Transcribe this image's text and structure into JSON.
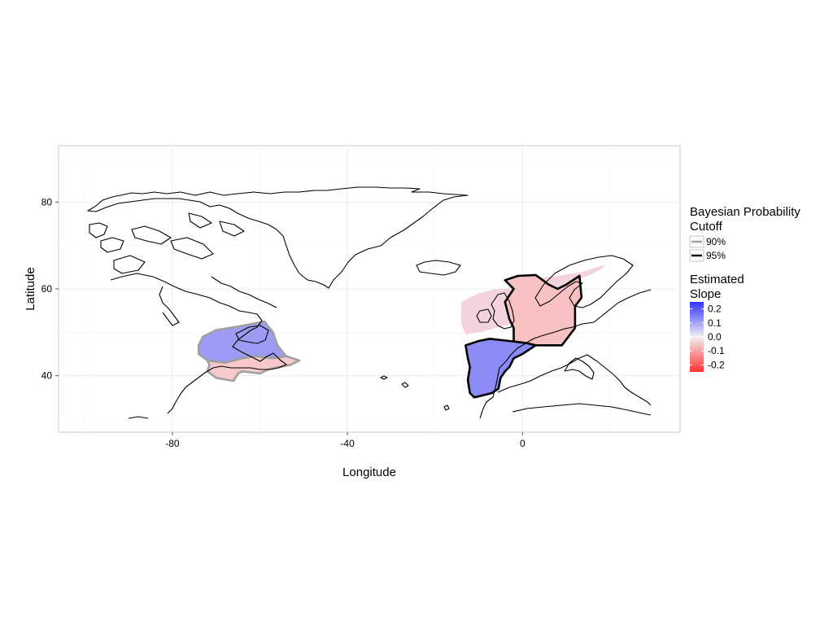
{
  "chart_data": {
    "type": "map",
    "xlabel": "Longitude",
    "ylabel": "Latitude",
    "xlim": [
      -106,
      36
    ],
    "ylim": [
      27,
      93
    ],
    "x_ticks": [
      -80,
      -40,
      0
    ],
    "y_ticks": [
      40,
      60,
      80
    ],
    "grid": true,
    "background": "#ffffff",
    "regions": [
      {
        "id": "nw-atlantic-north",
        "slope": 0.17,
        "cutoff": "90%",
        "fill": "#9c9cf4",
        "polygon": [
          [
            -74,
            47
          ],
          [
            -73,
            49
          ],
          [
            -70,
            50.5
          ],
          [
            -64,
            51.5
          ],
          [
            -59,
            52.5
          ],
          [
            -57,
            50
          ],
          [
            -56,
            47
          ],
          [
            -54,
            44.5
          ],
          [
            -57,
            44
          ],
          [
            -61,
            44.5
          ],
          [
            -64,
            44
          ],
          [
            -68,
            43
          ],
          [
            -72,
            43.5
          ],
          [
            -74,
            45
          ]
        ]
      },
      {
        "id": "nw-atlantic-south",
        "slope": -0.06,
        "cutoff": "90%",
        "fill": "#f7c9ca",
        "polygon": [
          [
            -72,
            43.5
          ],
          [
            -68,
            43
          ],
          [
            -64,
            44
          ],
          [
            -61,
            44.5
          ],
          [
            -57,
            44
          ],
          [
            -54,
            44.5
          ],
          [
            -51,
            43.5
          ],
          [
            -53,
            42.5
          ],
          [
            -58,
            41.5
          ],
          [
            -60,
            40.5
          ],
          [
            -64,
            41
          ],
          [
            -65,
            40.5
          ],
          [
            -66,
            38.8
          ],
          [
            -70,
            39.5
          ],
          [
            -72,
            41
          ],
          [
            -71.5,
            42.5
          ]
        ]
      },
      {
        "id": "ne-atlantic-outer",
        "slope": -0.04,
        "cutoff": "none",
        "fill": "#f3d3dc",
        "polygon": [
          [
            -14,
            57
          ],
          [
            -10,
            59
          ],
          [
            -6,
            60
          ],
          [
            -3,
            60
          ],
          [
            -3,
            62
          ],
          [
            3,
            62.5
          ],
          [
            8,
            63
          ],
          [
            14,
            64
          ],
          [
            17,
            65
          ],
          [
            19,
            65.5
          ],
          [
            18,
            64.5
          ],
          [
            15,
            63
          ],
          [
            12,
            62
          ],
          [
            8,
            59
          ],
          [
            5,
            57
          ],
          [
            2,
            54
          ],
          [
            -2,
            52
          ],
          [
            -6,
            51
          ],
          [
            -10,
            50
          ],
          [
            -13,
            49.5
          ],
          [
            -14,
            52
          ]
        ]
      },
      {
        "id": "north-sea-baltic",
        "slope": -0.07,
        "cutoff": "95%",
        "fill": "#f7c1c1",
        "polygon": [
          [
            -4,
            62
          ],
          [
            -1,
            63
          ],
          [
            3,
            63.2
          ],
          [
            6,
            61
          ],
          [
            8,
            60
          ],
          [
            10,
            61
          ],
          [
            13,
            63
          ],
          [
            13.5,
            58
          ],
          [
            12,
            56
          ],
          [
            12,
            51
          ],
          [
            9,
            47
          ],
          [
            3,
            47
          ],
          [
            -2,
            47.5
          ],
          [
            -2,
            51
          ],
          [
            -3,
            53
          ],
          [
            -4,
            57
          ],
          [
            -2,
            60
          ]
        ]
      },
      {
        "id": "bay-of-biscay",
        "slope": 0.2,
        "cutoff": "95%",
        "fill": "#8b8bf7",
        "polygon": [
          [
            -13,
            47
          ],
          [
            -10,
            48
          ],
          [
            -7.5,
            48.5
          ],
          [
            -3,
            48
          ],
          [
            1,
            47.5
          ],
          [
            3,
            47
          ],
          [
            0,
            45
          ],
          [
            -2,
            44
          ],
          [
            -3,
            42
          ],
          [
            -4,
            41
          ],
          [
            -5,
            39.5
          ],
          [
            -5.5,
            37
          ],
          [
            -7,
            36
          ],
          [
            -9,
            35.5
          ],
          [
            -11,
            35
          ],
          [
            -12,
            36
          ],
          [
            -12.5,
            39
          ],
          [
            -12,
            42
          ],
          [
            -12.5,
            44
          ]
        ]
      }
    ]
  },
  "legend": {
    "cutoff_title_line1": "Bayesian Probability",
    "cutoff_title_line2": "Cutoff",
    "cutoff_items": [
      {
        "label": "90%",
        "color": "#a0a0a0"
      },
      {
        "label": "95%",
        "color": "#000000"
      }
    ],
    "slope_title_line1": "Estimated",
    "slope_title_line2": "Slope",
    "slope_ticks": [
      "0.2",
      "0.1",
      "0.0",
      "-0.1",
      "-0.2"
    ],
    "slope_range": [
      0.25,
      -0.25
    ],
    "slope_colors": {
      "high": "#3333ff",
      "mid": "#f1eff2",
      "low": "#ff3333"
    }
  }
}
